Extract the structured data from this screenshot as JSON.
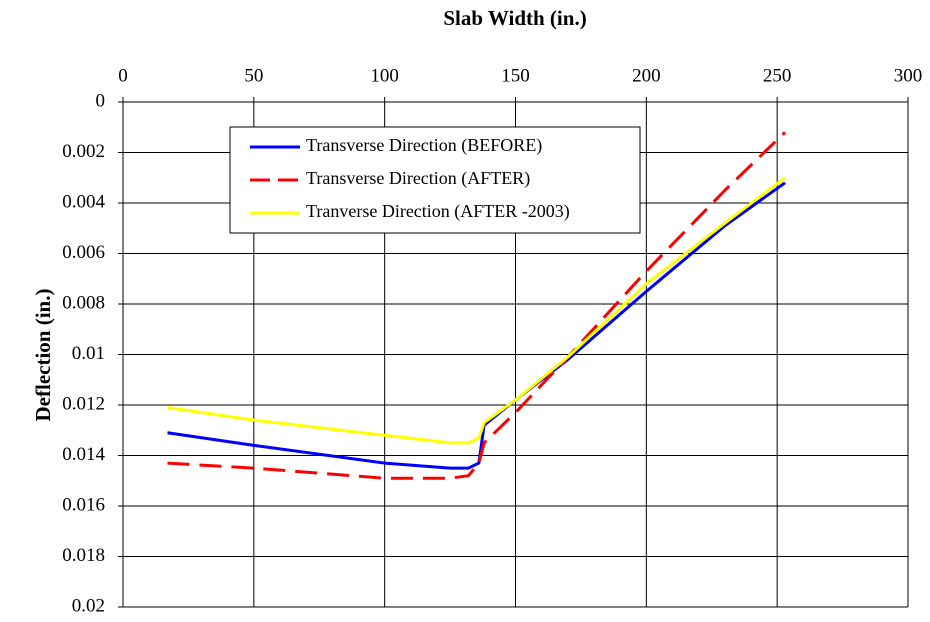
{
  "chart_data": {
    "type": "line",
    "title": "Slab Width (in.)",
    "y_label": "Deflection (in.)",
    "x": [
      17,
      50,
      100,
      125,
      132,
      136,
      138,
      150,
      170,
      200,
      230,
      253
    ],
    "series": [
      {
        "name": "Transverse Direction (BEFORE)",
        "color": "#0000ff",
        "dash": "solid",
        "values": [
          0.0131,
          0.0136,
          0.0143,
          0.0145,
          0.0145,
          0.0143,
          0.0128,
          0.0118,
          0.0102,
          0.0075,
          0.0049,
          0.0032
        ]
      },
      {
        "name": "Transverse Direction (AFTER)",
        "color": "#ff0000",
        "dash": "dashed",
        "values": [
          0.0143,
          0.0145,
          0.0149,
          0.0149,
          0.0148,
          0.0143,
          0.0135,
          0.0123,
          0.0101,
          0.0067,
          0.0035,
          0.0012
        ]
      },
      {
        "name": "Tranverse Direction (AFTER -2003)",
        "color": "#ffff00",
        "dash": "solid",
        "values": [
          0.0121,
          0.0126,
          0.0132,
          0.0135,
          0.0135,
          0.0133,
          0.0127,
          0.0118,
          0.0101,
          0.0072,
          0.0048,
          0.003
        ]
      }
    ],
    "xlim": [
      0,
      300
    ],
    "xticks": [
      0,
      50,
      100,
      150,
      200,
      250,
      300
    ],
    "ylim": [
      0,
      0.02
    ],
    "yticks": [
      0,
      0.002,
      0.004,
      0.006,
      0.008,
      0.01,
      0.012,
      0.014,
      0.016,
      0.018,
      0.02
    ],
    "y_inverted": true,
    "x_axis_position": "top",
    "grid": true
  }
}
